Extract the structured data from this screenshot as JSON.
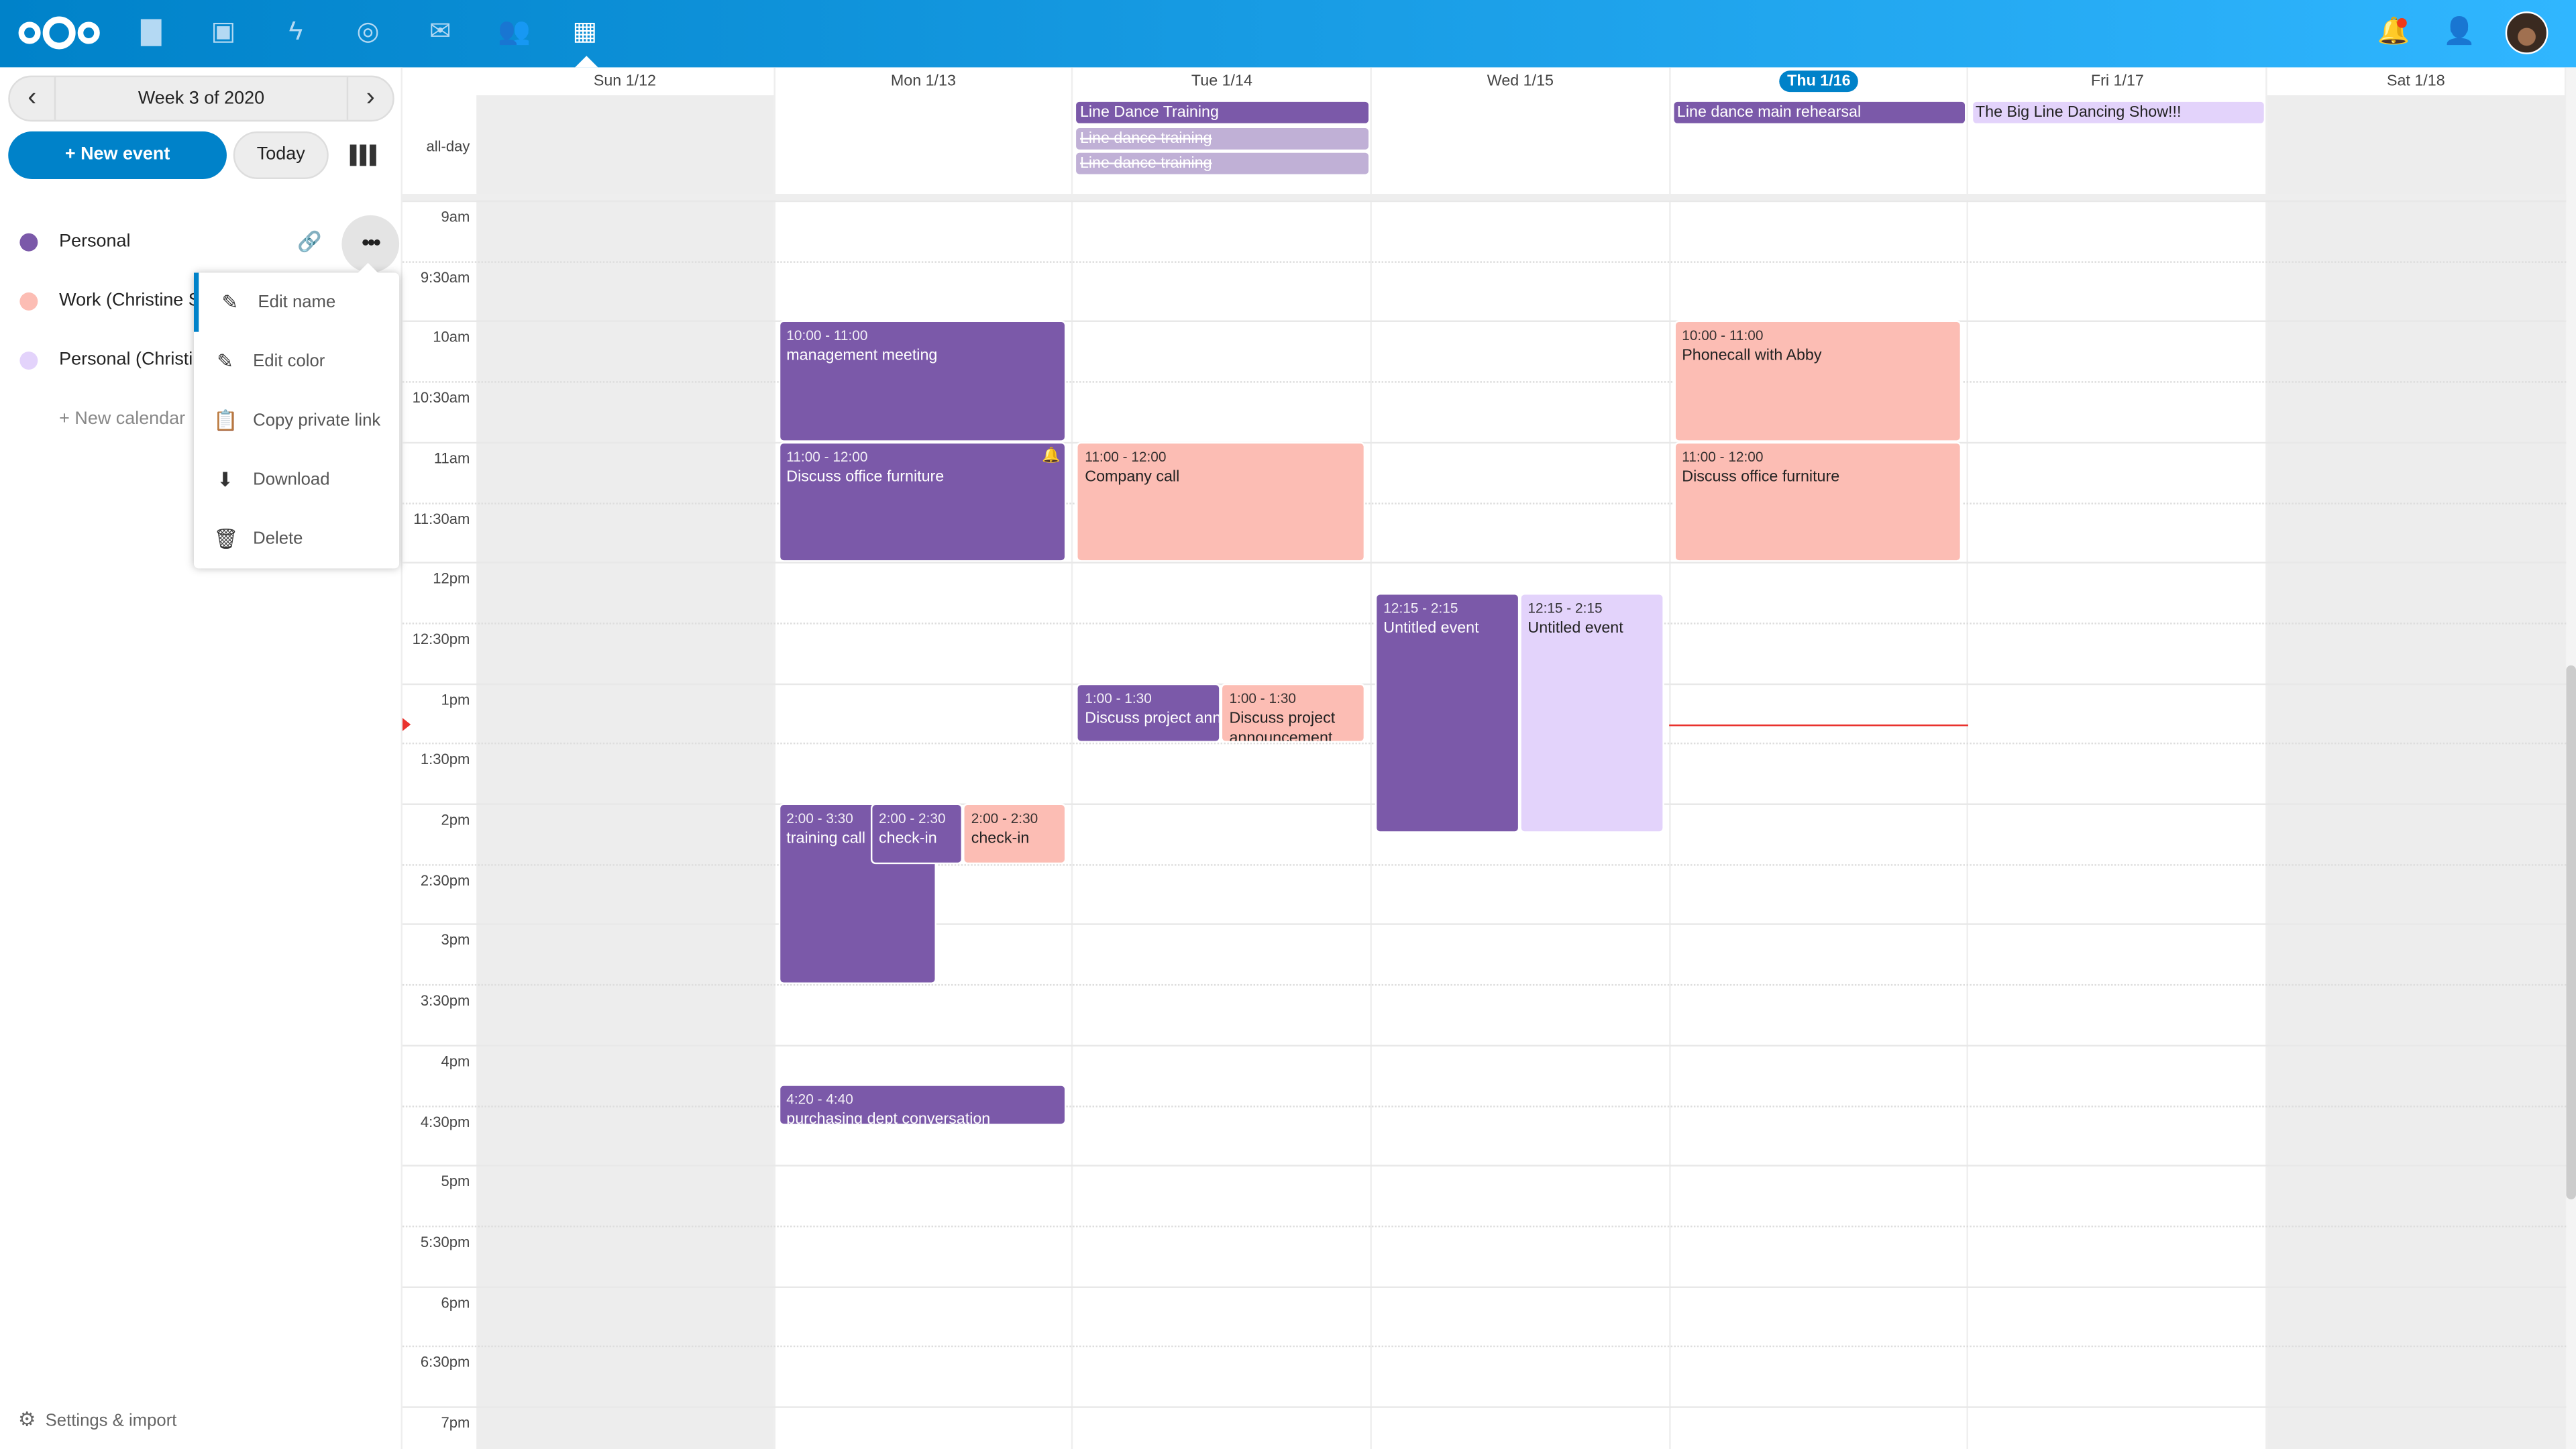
{
  "header": {
    "apps": [
      {
        "icon": "files-icon",
        "glyph": "▇"
      },
      {
        "icon": "photos-icon",
        "glyph": "▣"
      },
      {
        "icon": "activity-icon",
        "glyph": "ϟ"
      },
      {
        "icon": "talk-icon",
        "glyph": "◎"
      },
      {
        "icon": "mail-icon",
        "glyph": "✉"
      },
      {
        "icon": "contacts-icon",
        "glyph": "👥"
      },
      {
        "icon": "calendar-icon",
        "glyph": "▦"
      }
    ],
    "active_app": "calendar",
    "right": {
      "notifications": "bell-icon",
      "contacts_menu": "contacts-menu-icon",
      "avatar": "avatar"
    },
    "colors": {
      "start": "#0082c9",
      "end": "#30b6ff"
    }
  },
  "sidebar": {
    "week_label": "Week 3 of 2020",
    "new_event": "+ New event",
    "today": "Today",
    "calendars": [
      {
        "name": "Personal",
        "color": "#7b59a9"
      },
      {
        "name": "Work (Christine S",
        "color": "#fcbdb4"
      },
      {
        "name": "Personal (Christine",
        "color": "#e3d3fb"
      }
    ],
    "new_calendar": "+ New calendar",
    "settings": "Settings & import",
    "menu": [
      "Edit name",
      "Edit color",
      "Copy private link",
      "Download",
      "Delete"
    ]
  },
  "calendar": {
    "days": [
      "Sun 1/12",
      "Mon 1/13",
      "Tue 1/14",
      "Wed 1/15",
      "Thu 1/16",
      "Fri 1/17",
      "Sat 1/18"
    ],
    "today_index": 4,
    "allday_label": "all-day",
    "times": [
      "9am",
      "9:30am",
      "10am",
      "10:30am",
      "11am",
      "11:30am",
      "12pm",
      "12:30pm",
      "1pm",
      "1:30pm",
      "2pm",
      "2:30pm",
      "3pm",
      "3:30pm",
      "4pm",
      "4:30pm",
      "5pm",
      "5:30pm",
      "6pm",
      "6:30pm",
      "7pm"
    ],
    "allday_events": [
      {
        "day": 2,
        "title": "Line Dance Training",
        "color": "purple",
        "cancelled": false
      },
      {
        "day": 2,
        "title": "Line dance training",
        "color": "faded",
        "cancelled": true
      },
      {
        "day": 2,
        "title": "Line dance training",
        "color": "faded",
        "cancelled": true
      },
      {
        "day": 4,
        "title": "Line dance main rehearsal",
        "color": "purple",
        "cancelled": false
      },
      {
        "day": 5,
        "title": "The Big Line Dancing Show!!!",
        "color": "lavender",
        "cancelled": false
      }
    ],
    "events": [
      {
        "day": 1,
        "time": "10:00 - 11:00",
        "title": "management meeting",
        "color": "purple"
      },
      {
        "day": 1,
        "time": "11:00 - 12:00",
        "title": "Discuss office furniture",
        "color": "purple",
        "alarm": true
      },
      {
        "day": 1,
        "time": "2:00 - 3:30",
        "title": "training call",
        "color": "purple"
      },
      {
        "day": 1,
        "time": "2:00 - 2:30",
        "title": "check-in",
        "color": "purple"
      },
      {
        "day": 1,
        "time": "2:00 - 2:30",
        "title": "check-in",
        "color": "pink"
      },
      {
        "day": 1,
        "time": "4:20 - 4:40",
        "title": "purchasing dept conversation",
        "color": "purple"
      },
      {
        "day": 2,
        "time": "11:00 - 12:00",
        "title": "Company call",
        "color": "pink"
      },
      {
        "day": 2,
        "time": "1:00 - 1:30",
        "title": "Discuss project announcement",
        "color": "purple"
      },
      {
        "day": 2,
        "time": "1:00 - 1:30",
        "title": "Discuss project announcement",
        "color": "pink"
      },
      {
        "day": 3,
        "time": "12:15 - 2:15",
        "title": "Untitled event",
        "color": "purple"
      },
      {
        "day": 3,
        "time": "12:15 - 2:15",
        "title": "Untitled event",
        "color": "lavender"
      },
      {
        "day": 4,
        "time": "10:00 - 11:00",
        "title": "Phonecall with Abby",
        "color": "pink"
      },
      {
        "day": 4,
        "time": "11:00 - 12:00",
        "title": "Discuss office furniture",
        "color": "pink"
      }
    ],
    "colors": {
      "purple": "#7b59a9",
      "pink": "#fcbdb4",
      "lavender": "#e3d3fb",
      "faded": "#c0b0d6",
      "now": "#e9322d"
    }
  }
}
